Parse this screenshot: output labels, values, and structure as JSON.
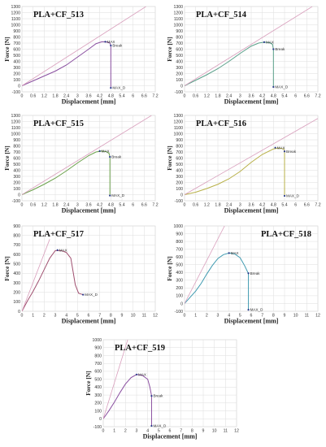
{
  "chart_data": [
    {
      "type": "line",
      "title": "PLA+CF_513",
      "xlabel": "Displacement [mm]",
      "ylabel": "Force [N]",
      "xlim": [
        0,
        7.2
      ],
      "ylim": [
        -100,
        1300
      ],
      "xticks": [
        "0",
        "0.6",
        "1.2",
        "1.8",
        "2.4",
        "3",
        "3.6",
        "4.2",
        "4.8",
        "5.4",
        "6",
        "6.6",
        "7.2"
      ],
      "yticks": [
        "-100",
        "0",
        "100",
        "200",
        "300",
        "400",
        "500",
        "600",
        "700",
        "800",
        "900",
        "1000",
        "1100",
        "1200",
        "1300"
      ],
      "grid": true,
      "series": [
        {
          "role": "curve",
          "color": "#8a4fa0",
          "x": [
            0,
            0.6,
            1.2,
            1.8,
            2.4,
            3.0,
            3.6,
            4.0,
            4.3,
            4.55,
            4.75,
            4.8,
            4.8
          ],
          "y": [
            0,
            80,
            160,
            240,
            340,
            470,
            600,
            690,
            720,
            720,
            700,
            660,
            -35
          ]
        },
        {
          "role": "reference",
          "color": "#d9a0bd",
          "x": [
            0,
            6.7
          ],
          "y": [
            0,
            1300
          ]
        }
      ],
      "annotations": [
        {
          "label": "MAX",
          "x": 4.5,
          "y": 722
        },
        {
          "label": "Break",
          "x": 4.8,
          "y": 660
        },
        {
          "label": "MAX_D",
          "x": 4.8,
          "y": -35
        }
      ]
    },
    {
      "type": "line",
      "title": "PLA+CF_514",
      "xlabel": "Displacement [mm]",
      "ylabel": "Force [N]",
      "xlim": [
        0,
        7.2
      ],
      "ylim": [
        -100,
        1300
      ],
      "xticks": [
        "0",
        "0.6",
        "1.2",
        "1.8",
        "2.4",
        "3",
        "3.6",
        "4.2",
        "4.8",
        "5.4",
        "6",
        "6.6",
        "7.2"
      ],
      "yticks": [
        "-100",
        "0",
        "100",
        "200",
        "300",
        "400",
        "500",
        "600",
        "700",
        "800",
        "900",
        "1000",
        "1100",
        "1200",
        "1300"
      ],
      "grid": true,
      "series": [
        {
          "role": "curve",
          "color": "#5aa08a",
          "x": [
            0,
            0.6,
            1.2,
            1.8,
            2.4,
            3.0,
            3.6,
            4.0,
            4.3,
            4.6,
            4.75,
            4.8,
            4.8
          ],
          "y": [
            0,
            90,
            180,
            280,
            400,
            530,
            650,
            700,
            715,
            705,
            680,
            600,
            -20
          ]
        },
        {
          "role": "reference",
          "color": "#d9a0bd",
          "x": [
            0,
            6.9
          ],
          "y": [
            0,
            1300
          ]
        }
      ],
      "annotations": [
        {
          "label": "MAX",
          "x": 4.3,
          "y": 715
        },
        {
          "label": "Break",
          "x": 4.8,
          "y": 600
        },
        {
          "label": "MAX_D",
          "x": 4.8,
          "y": -20
        }
      ]
    },
    {
      "type": "line",
      "title": "PLA+CF_515",
      "xlabel": "Displacement [mm]",
      "ylabel": "Force [N]",
      "xlim": [
        0,
        7.2
      ],
      "ylim": [
        -100,
        1300
      ],
      "xticks": [
        "0",
        "0.6",
        "1.2",
        "1.8",
        "2.4",
        "3",
        "3.6",
        "4.2",
        "4.8",
        "5.4",
        "6",
        "6.6",
        "7.2"
      ],
      "yticks": [
        "-100",
        "0",
        "100",
        "200",
        "300",
        "400",
        "500",
        "600",
        "700",
        "800",
        "900",
        "1000",
        "1100",
        "1200",
        "1300"
      ],
      "grid": true,
      "series": [
        {
          "role": "curve",
          "color": "#6aa04a",
          "x": [
            0,
            0.6,
            1.2,
            1.8,
            2.4,
            3.0,
            3.6,
            4.0,
            4.3,
            4.55,
            4.7,
            4.75,
            4.75
          ],
          "y": [
            0,
            80,
            170,
            270,
            390,
            520,
            640,
            700,
            715,
            705,
            680,
            620,
            -15
          ]
        },
        {
          "role": "reference",
          "color": "#d9a0bd",
          "x": [
            0,
            7.0
          ],
          "y": [
            0,
            1300
          ]
        }
      ],
      "annotations": [
        {
          "label": "MAX",
          "x": 4.2,
          "y": 715
        },
        {
          "label": "Break",
          "x": 4.75,
          "y": 620
        },
        {
          "label": "MAX_D",
          "x": 4.75,
          "y": -15
        }
      ]
    },
    {
      "type": "line",
      "title": "PLA+CF_516",
      "xlabel": "Displacement [mm]",
      "ylabel": "Force [N]",
      "xlim": [
        0,
        7.2
      ],
      "ylim": [
        -100,
        1300
      ],
      "xticks": [
        "0",
        "0.6",
        "1.2",
        "1.8",
        "2.4",
        "3",
        "3.6",
        "4.2",
        "4.8",
        "5.4",
        "6",
        "6.6",
        "7.2"
      ],
      "yticks": [
        "-100",
        "0",
        "100",
        "200",
        "300",
        "400",
        "500",
        "600",
        "700",
        "800",
        "900",
        "1000",
        "1100",
        "1200",
        "1300"
      ],
      "grid": true,
      "series": [
        {
          "role": "curve",
          "color": "#b8b048",
          "x": [
            0,
            0.6,
            1.2,
            1.8,
            2.4,
            3.0,
            3.6,
            4.2,
            4.8,
            5.1,
            5.35,
            5.4,
            5.4
          ],
          "y": [
            0,
            40,
            100,
            170,
            260,
            380,
            530,
            660,
            750,
            765,
            750,
            710,
            -20
          ]
        },
        {
          "role": "reference",
          "color": "#d9a0bd",
          "x": [
            0,
            7.2
          ],
          "y": [
            0,
            1250
          ]
        }
      ],
      "annotations": [
        {
          "label": "MAX",
          "x": 4.9,
          "y": 770
        },
        {
          "label": "Break",
          "x": 5.4,
          "y": 710
        },
        {
          "label": "MAX_D",
          "x": 5.4,
          "y": -20
        }
      ]
    },
    {
      "type": "line",
      "title": "PLA+CF_517",
      "xlabel": "Displacement [mm]",
      "ylabel": "Force [N]",
      "xlim": [
        0,
        12
      ],
      "ylim": [
        0,
        900
      ],
      "xticks": [
        "0",
        "1",
        "2",
        "3",
        "4",
        "5",
        "6",
        "7",
        "8",
        "9",
        "10",
        "11",
        "12"
      ],
      "yticks": [
        "0",
        "100",
        "200",
        "300",
        "400",
        "500",
        "600",
        "700",
        "800",
        "900"
      ],
      "grid": true,
      "series": [
        {
          "role": "curve",
          "color": "#a05070",
          "x": [
            0,
            0.5,
            1.0,
            1.5,
            2.0,
            2.5,
            3.0,
            3.5,
            4.0,
            4.4,
            4.6,
            4.8,
            5.1,
            5.5
          ],
          "y": [
            0,
            110,
            210,
            320,
            440,
            560,
            640,
            640,
            620,
            560,
            420,
            280,
            190,
            175
          ]
        },
        {
          "role": "reference",
          "color": "#d9a0bd",
          "x": [
            0,
            2.5
          ],
          "y": [
            0,
            760
          ]
        }
      ],
      "annotations": [
        {
          "label": "MAX",
          "x": 3.2,
          "y": 645
        },
        {
          "label": "MAX_D",
          "x": 5.5,
          "y": 175
        }
      ]
    },
    {
      "type": "line",
      "title": "PLA+CF_518",
      "xlabel": "Displacement [mm]",
      "ylabel": "Force [N]",
      "xlim": [
        0,
        12
      ],
      "ylim": [
        -100,
        1000
      ],
      "xticks": [
        "0",
        "1",
        "2",
        "3",
        "4",
        "5",
        "6",
        "7",
        "8",
        "9",
        "10",
        "11",
        "12"
      ],
      "yticks": [
        "-100",
        "0",
        "100",
        "200",
        "300",
        "400",
        "500",
        "600",
        "700",
        "800",
        "900",
        "1000"
      ],
      "grid": true,
      "series": [
        {
          "role": "curve",
          "color": "#3f9ab0",
          "x": [
            0,
            0.5,
            1.0,
            1.5,
            2.0,
            2.5,
            3.0,
            3.5,
            4.0,
            4.5,
            5.0,
            5.4,
            5.7,
            5.75,
            5.75
          ],
          "y": [
            0,
            80,
            160,
            260,
            380,
            490,
            580,
            630,
            650,
            640,
            590,
            490,
            400,
            390,
            -80
          ]
        },
        {
          "role": "reference",
          "color": "#d9a0bd",
          "x": [
            0,
            3.6
          ],
          "y": [
            0,
            1000
          ]
        }
      ],
      "annotations": [
        {
          "label": "MAX",
          "x": 4.0,
          "y": 650
        },
        {
          "label": "Break",
          "x": 5.75,
          "y": 390
        },
        {
          "label": "MAX_D",
          "x": 5.75,
          "y": -80
        }
      ]
    },
    {
      "type": "line",
      "title": "PLA+CF_519",
      "xlabel": "Displacement [mm]",
      "ylabel": "Force [N]",
      "xlim": [
        0,
        12
      ],
      "ylim": [
        -100,
        1000
      ],
      "xticks": [
        "0",
        "1",
        "2",
        "3",
        "4",
        "5",
        "6",
        "7",
        "8",
        "9",
        "10",
        "11",
        "12"
      ],
      "yticks": [
        "-100",
        "0",
        "100",
        "200",
        "300",
        "400",
        "500",
        "600",
        "700",
        "800",
        "900",
        "1000"
      ],
      "grid": true,
      "series": [
        {
          "role": "curve",
          "color": "#8a4fa0",
          "x": [
            0,
            0.5,
            1.0,
            1.5,
            2.0,
            2.5,
            3.0,
            3.5,
            4.0,
            4.2,
            4.35,
            4.35
          ],
          "y": [
            0,
            100,
            210,
            330,
            440,
            520,
            560,
            550,
            500,
            400,
            290,
            -90
          ]
        },
        {
          "role": "reference",
          "color": "#d9a0bd",
          "x": [
            0,
            2.2
          ],
          "y": [
            0,
            1000
          ]
        }
      ],
      "annotations": [
        {
          "label": "MAX",
          "x": 3.0,
          "y": 560
        },
        {
          "label": "Break",
          "x": 4.35,
          "y": 290
        },
        {
          "label": "MAX_D",
          "x": 4.35,
          "y": -90
        }
      ]
    }
  ]
}
